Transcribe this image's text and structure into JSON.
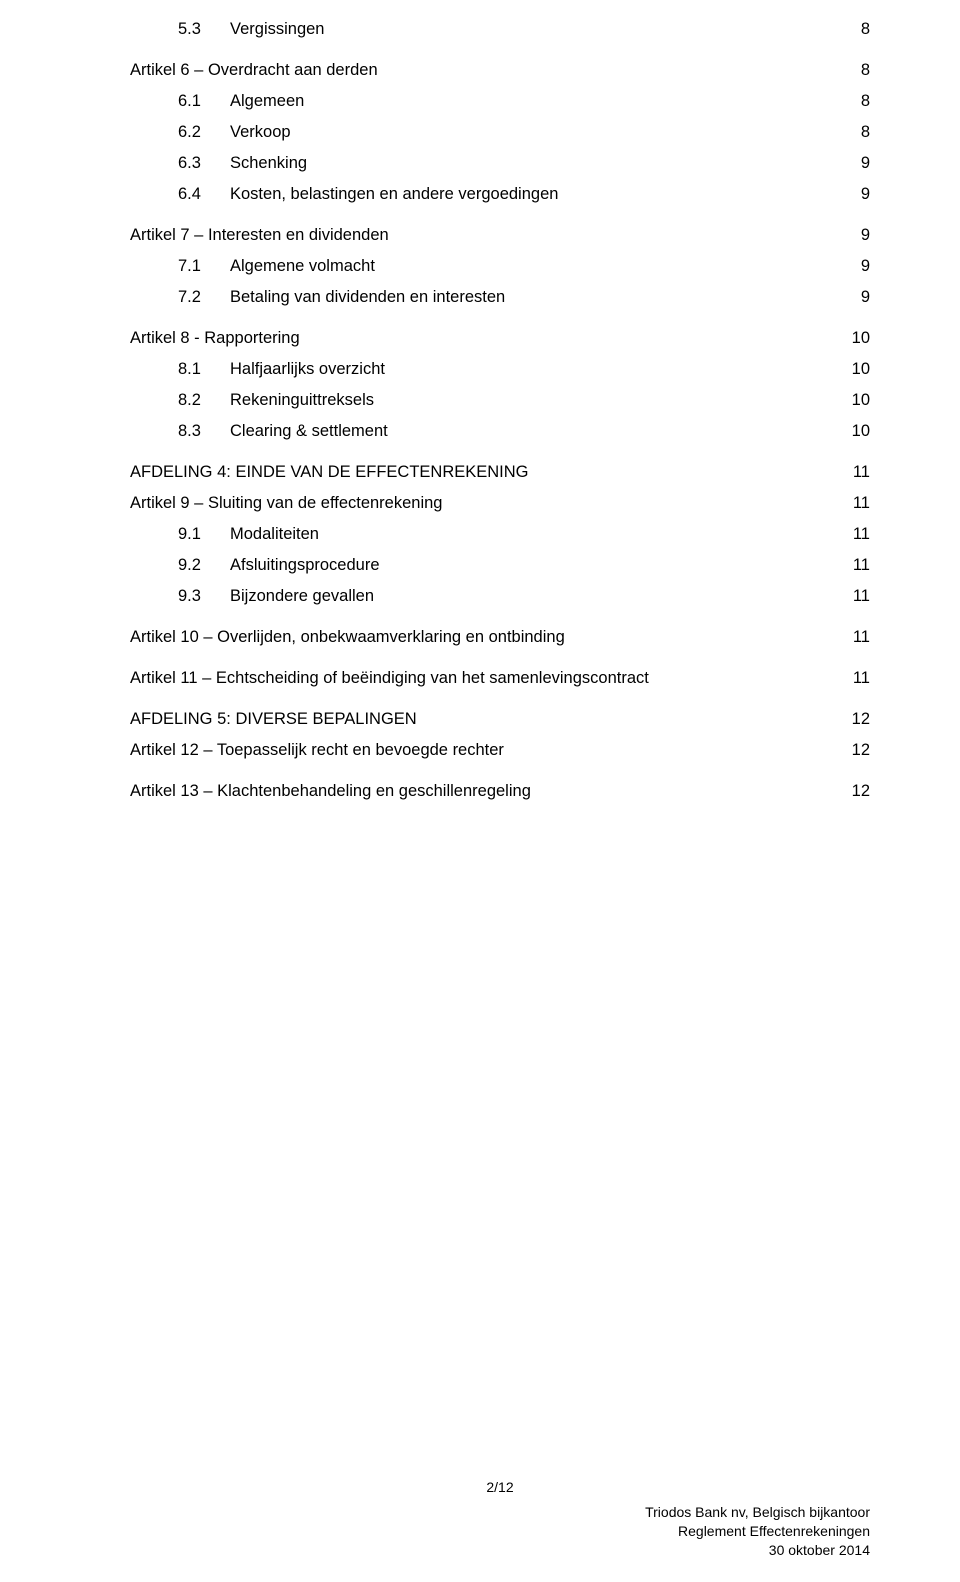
{
  "toc": [
    {
      "type": "sub",
      "num": "5.3",
      "title": "Vergissingen",
      "page": "8"
    },
    {
      "type": "head",
      "title": "Artikel 6 – Overdracht aan derden",
      "page": "8"
    },
    {
      "type": "sub",
      "num": "6.1",
      "title": "Algemeen",
      "page": "8"
    },
    {
      "type": "sub",
      "num": "6.2",
      "title": "Verkoop",
      "page": "8"
    },
    {
      "type": "sub",
      "num": "6.3",
      "title": "Schenking",
      "page": "9"
    },
    {
      "type": "sub",
      "num": "6.4",
      "title": "Kosten, belastingen en andere vergoedingen",
      "page": "9"
    },
    {
      "type": "head",
      "title": "Artikel 7 – Interesten en dividenden",
      "page": "9"
    },
    {
      "type": "sub",
      "num": "7.1",
      "title": "Algemene volmacht",
      "page": "9"
    },
    {
      "type": "sub",
      "num": "7.2",
      "title": "Betaling van dividenden en interesten",
      "page": "9"
    },
    {
      "type": "head",
      "title": "Artikel 8 - Rapportering",
      "page": "10"
    },
    {
      "type": "sub",
      "num": "8.1",
      "title": "Halfjaarlijks overzicht",
      "page": "10"
    },
    {
      "type": "sub",
      "num": "8.2",
      "title": "Rekeninguittreksels",
      "page": "10"
    },
    {
      "type": "sub",
      "num": "8.3",
      "title": "Clearing & settlement",
      "page": "10"
    },
    {
      "type": "head",
      "title": "AFDELING 4: EINDE VAN DE EFFECTENREKENING",
      "page": "11"
    },
    {
      "type": "head-tight",
      "title": "Artikel 9 – Sluiting van de effectenrekening",
      "page": "11"
    },
    {
      "type": "sub",
      "num": "9.1",
      "title": "Modaliteiten",
      "page": "11"
    },
    {
      "type": "sub",
      "num": "9.2",
      "title": "Afsluitingsprocedure",
      "page": "11"
    },
    {
      "type": "sub",
      "num": "9.3",
      "title": "Bijzondere gevallen",
      "page": "11"
    },
    {
      "type": "head",
      "title": "Artikel 10 – Overlijden, onbekwaamverklaring en ontbinding",
      "page": "11"
    },
    {
      "type": "head",
      "title": "Artikel 11 – Echtscheiding of beëindiging van het samenlevingscontract",
      "page": "11"
    },
    {
      "type": "head",
      "title": "AFDELING 5: DIVERSE BEPALINGEN",
      "page": "12"
    },
    {
      "type": "head-tight",
      "title": "Artikel 12 – Toepasselijk recht en bevoegde rechter",
      "page": "12"
    },
    {
      "type": "head",
      "title": "Artikel 13 – Klachtenbehandeling en geschillenregeling",
      "page": "12"
    }
  ],
  "footer": {
    "pagination": "2/12",
    "line1": "Triodos Bank nv, Belgisch bijkantoor",
    "line2": "Reglement Effectenrekeningen",
    "line3": "30 oktober 2014"
  }
}
